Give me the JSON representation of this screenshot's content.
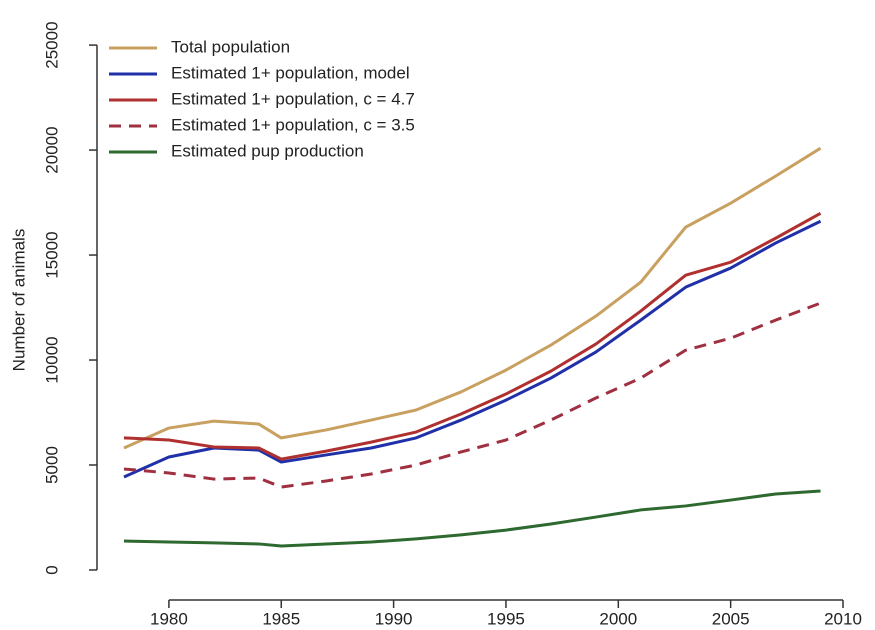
{
  "chart_data": {
    "type": "line",
    "y_label": "Number of animals",
    "x": [
      1978,
      1980,
      1982,
      1984,
      1985,
      1987,
      1989,
      1991,
      1993,
      1995,
      1997,
      1999,
      2001,
      2003,
      2005,
      2007,
      2009
    ],
    "series": [
      {
        "name": "Total population",
        "color": "#c8a060",
        "line_style": "solid",
        "values": [
          5810,
          6760,
          7090,
          6950,
          6290,
          6670,
          7140,
          7620,
          8480,
          9520,
          10710,
          12090,
          13710,
          16330,
          17470,
          18760,
          20090
        ]
      },
      {
        "name": "Estimated 1+ population, model",
        "color": "#2030a8",
        "line_style": "solid",
        "values": [
          4430,
          5380,
          5810,
          5710,
          5140,
          5480,
          5810,
          6290,
          7140,
          8090,
          9140,
          10380,
          11900,
          13470,
          14380,
          15570,
          16610
        ]
      },
      {
        "name": "Estimated 1+ population, c = 4.7",
        "color": "#b03030",
        "line_style": "solid",
        "values": [
          6290,
          6190,
          5860,
          5810,
          5280,
          5660,
          6090,
          6570,
          7430,
          8380,
          9470,
          10760,
          12330,
          14040,
          14660,
          15800,
          16990
        ]
      },
      {
        "name": "Estimated 1+ population, c = 3.5",
        "color": "#a03040",
        "line_style": "dashed",
        "values": [
          4810,
          4620,
          4330,
          4380,
          3950,
          4240,
          4570,
          5000,
          5620,
          6190,
          7140,
          8190,
          9140,
          10470,
          11040,
          11900,
          12710
        ]
      },
      {
        "name": "Estimated pup production",
        "color": "#2e6a30",
        "line_style": "solid",
        "values": [
          1380,
          1330,
          1290,
          1240,
          1140,
          1240,
          1330,
          1480,
          1670,
          1900,
          2190,
          2520,
          2860,
          3050,
          3330,
          3620,
          3760
        ]
      }
    ],
    "xlim": [
      1976.8,
      2010
    ],
    "xticks": [
      1980,
      1985,
      1990,
      1995,
      2000,
      2005,
      2010
    ],
    "ylim": [
      -1430,
      26290
    ],
    "yticks": [
      0,
      5000,
      10000,
      15000,
      20000,
      25000
    ],
    "legend": "top-left",
    "grid": false
  }
}
